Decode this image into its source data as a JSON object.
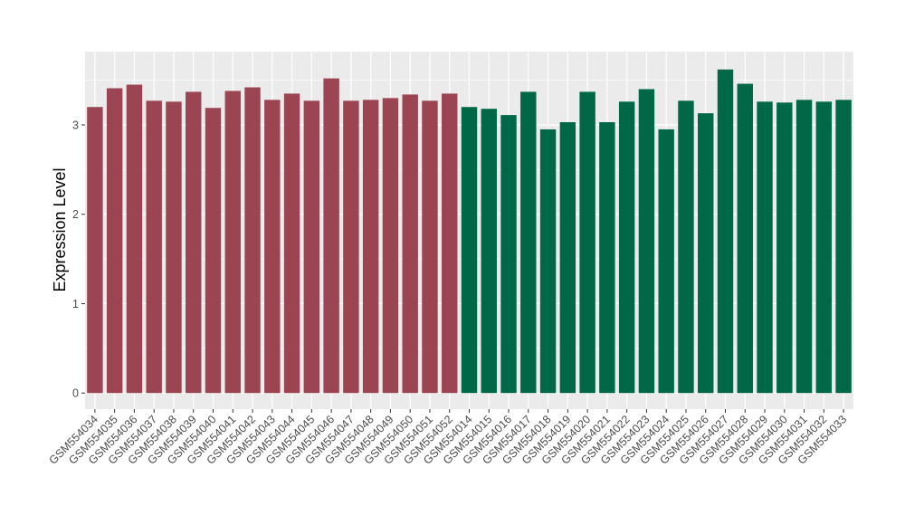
{
  "chart_data": {
    "type": "bar",
    "ylabel": "Expression Level",
    "xlabel": "",
    "ylim": [
      -0.18,
      3.82
    ],
    "yticks": [
      0,
      1,
      2,
      3
    ],
    "grid": true,
    "legend": "none",
    "panel_background": "#ebebeb",
    "gridline_color": "#ffffff",
    "categories": [
      "GSM554034",
      "GSM554035",
      "GSM554036",
      "GSM554037",
      "GSM554038",
      "GSM554039",
      "GSM554040",
      "GSM554041",
      "GSM554042",
      "GSM554043",
      "GSM554044",
      "GSM554045",
      "GSM554046",
      "GSM554047",
      "GSM554048",
      "GSM554049",
      "GSM554050",
      "GSM554051",
      "GSM554052",
      "GSM554014",
      "GSM554015",
      "GSM554016",
      "GSM554017",
      "GSM554018",
      "GSM554019",
      "GSM554020",
      "GSM554021",
      "GSM554022",
      "GSM554023",
      "GSM554024",
      "GSM554025",
      "GSM554026",
      "GSM554027",
      "GSM554028",
      "GSM554029",
      "GSM554030",
      "GSM554031",
      "GSM554032",
      "GSM554033"
    ],
    "values": [
      3.2,
      3.41,
      3.45,
      3.27,
      3.26,
      3.37,
      3.19,
      3.38,
      3.42,
      3.28,
      3.35,
      3.27,
      3.52,
      3.27,
      3.28,
      3.3,
      3.34,
      3.27,
      3.35,
      3.2,
      3.18,
      3.11,
      3.37,
      2.95,
      3.03,
      3.37,
      3.03,
      3.26,
      3.4,
      2.95,
      3.27,
      3.13,
      3.62,
      3.46,
      3.26,
      3.25,
      3.28,
      3.26,
      3.28
    ],
    "bar_colors": [
      "#9b4452",
      "#9b4452",
      "#9b4452",
      "#9b4452",
      "#9b4452",
      "#9b4452",
      "#9b4452",
      "#9b4452",
      "#9b4452",
      "#9b4452",
      "#9b4452",
      "#9b4452",
      "#9b4452",
      "#9b4452",
      "#9b4452",
      "#9b4452",
      "#9b4452",
      "#9b4452",
      "#9b4452",
      "#006846",
      "#006846",
      "#006846",
      "#006846",
      "#006846",
      "#006846",
      "#006846",
      "#006846",
      "#006846",
      "#006846",
      "#006846",
      "#006846",
      "#006846",
      "#006846",
      "#006846",
      "#006846",
      "#006846",
      "#006846",
      "#006846",
      "#006846"
    ]
  }
}
